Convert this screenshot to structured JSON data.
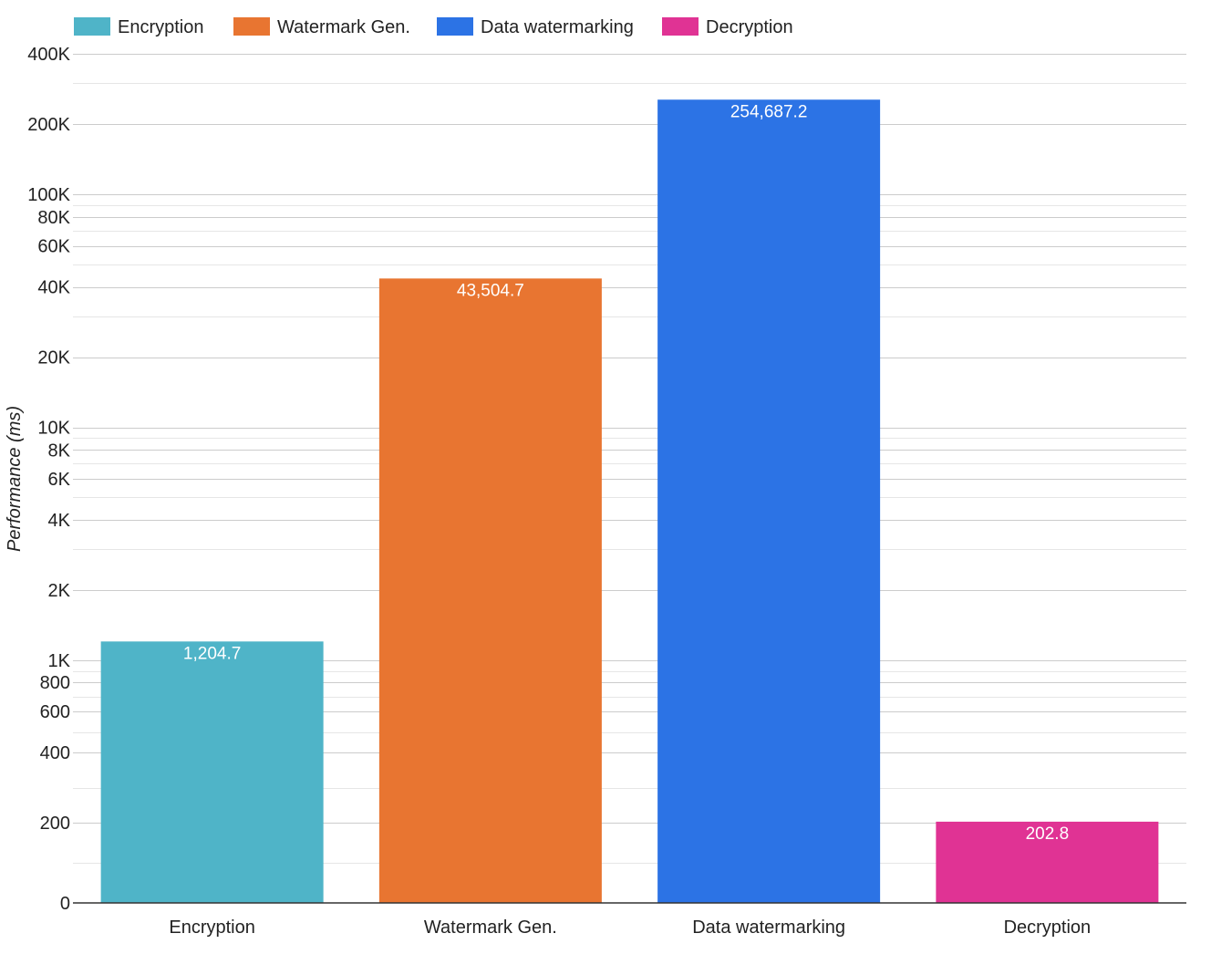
{
  "chart_data": {
    "type": "bar",
    "scale": "log",
    "categories": [
      "Encryption",
      "Watermark Gen.",
      "Data watermarking",
      "Decryption"
    ],
    "values": [
      1204.7,
      43504.7,
      254687.2,
      202.8
    ],
    "data_labels": [
      "1,204.7",
      "43,504.7",
      "254,687.2",
      "202.8"
    ],
    "colors": [
      "#4fb4c8",
      "#e87531",
      "#2c73e5",
      "#e03394"
    ],
    "legend": {
      "position": "top-left",
      "entries": [
        "Encryption",
        "Watermark Gen.",
        "Data watermarking",
        "Decryption"
      ]
    },
    "ylabel": "Performance (ms)",
    "xlabel": "",
    "ylim": [
      0,
      400000
    ],
    "y_ticks": [
      {
        "value": 0,
        "label": "0"
      },
      {
        "value": 200,
        "label": "200"
      },
      {
        "value": 400,
        "label": "400"
      },
      {
        "value": 600,
        "label": "600"
      },
      {
        "value": 800,
        "label": "800"
      },
      {
        "value": 1000,
        "label": "1K"
      },
      {
        "value": 2000,
        "label": "2K"
      },
      {
        "value": 4000,
        "label": "4K"
      },
      {
        "value": 6000,
        "label": "6K"
      },
      {
        "value": 8000,
        "label": "8K"
      },
      {
        "value": 10000,
        "label": "10K"
      },
      {
        "value": 20000,
        "label": "20K"
      },
      {
        "value": 40000,
        "label": "40K"
      },
      {
        "value": 60000,
        "label": "60K"
      },
      {
        "value": 80000,
        "label": "80K"
      },
      {
        "value": 100000,
        "label": "100K"
      },
      {
        "value": 200000,
        "label": "200K"
      },
      {
        "value": 400000,
        "label": "400K"
      }
    ],
    "grid": true
  }
}
